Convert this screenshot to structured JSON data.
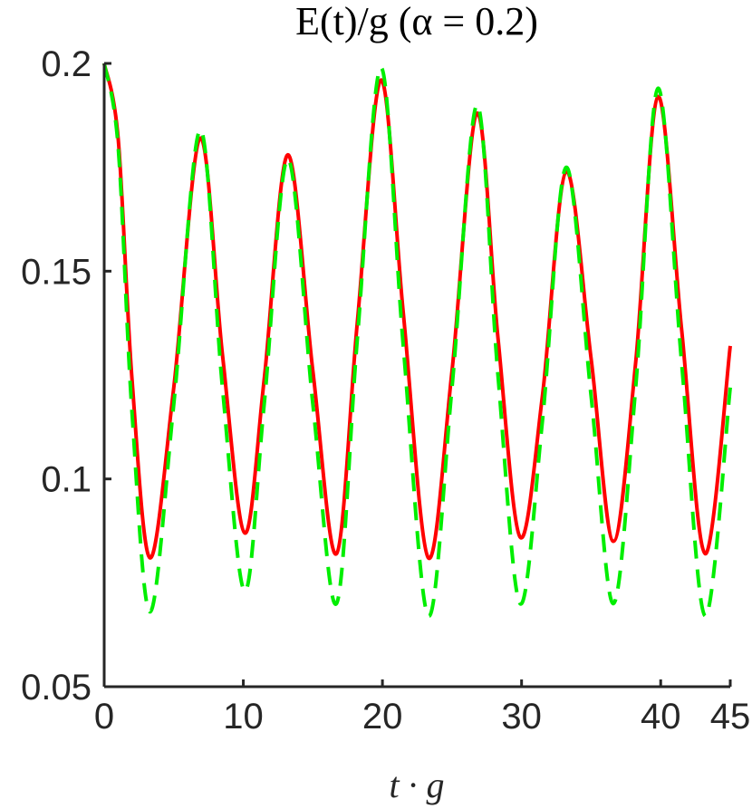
{
  "chart_data": {
    "type": "line",
    "title": "E(t)/g (α = 0.2)",
    "xlabel": "t · g",
    "ylabel": "",
    "xlim": [
      0,
      45
    ],
    "ylim": [
      0.05,
      0.2
    ],
    "xticks": [
      "0",
      "10",
      "20",
      "30",
      "40",
      "45"
    ],
    "xtick_values": [
      0,
      10,
      20,
      30,
      40,
      45
    ],
    "yticks": [
      "0.05",
      "0.1",
      "0.15",
      "0.2"
    ],
    "ytick_values": [
      0.05,
      0.1,
      0.15,
      0.2
    ],
    "grid": false,
    "box": false,
    "series": [
      {
        "color": "#ff0000",
        "style": "solid",
        "x": [
          0,
          1,
          2,
          3.3,
          5,
          6.9,
          8.5,
          10.1,
          11.5,
          13.2,
          15,
          16.7,
          18.2,
          19.9,
          21.5,
          23.3,
          25,
          26.8,
          28.3,
          29.9,
          31.5,
          33.2,
          35,
          36.6,
          38.2,
          39.8,
          41.5,
          43.2,
          45
        ],
        "y": [
          0.2,
          0.182,
          0.124,
          0.081,
          0.122,
          0.182,
          0.13,
          0.087,
          0.124,
          0.178,
          0.126,
          0.082,
          0.138,
          0.196,
          0.14,
          0.081,
          0.126,
          0.188,
          0.134,
          0.086,
          0.12,
          0.174,
          0.129,
          0.085,
          0.128,
          0.192,
          0.136,
          0.082,
          0.132
        ]
      },
      {
        "color": "#00ee00",
        "style": "dashed",
        "x": [
          0,
          1,
          2,
          3.3,
          5,
          6.9,
          8.5,
          10.1,
          11.5,
          13.2,
          15,
          16.7,
          18.2,
          19.9,
          21.5,
          23.3,
          25,
          26.8,
          28.3,
          29.9,
          31.5,
          33.2,
          35,
          36.6,
          38.2,
          39.8,
          41.5,
          43.2,
          45
        ],
        "y": [
          0.2,
          0.18,
          0.116,
          0.068,
          0.118,
          0.184,
          0.122,
          0.073,
          0.118,
          0.177,
          0.118,
          0.07,
          0.134,
          0.199,
          0.132,
          0.067,
          0.122,
          0.19,
          0.125,
          0.07,
          0.114,
          0.175,
          0.12,
          0.07,
          0.122,
          0.194,
          0.128,
          0.067,
          0.122
        ]
      }
    ]
  }
}
